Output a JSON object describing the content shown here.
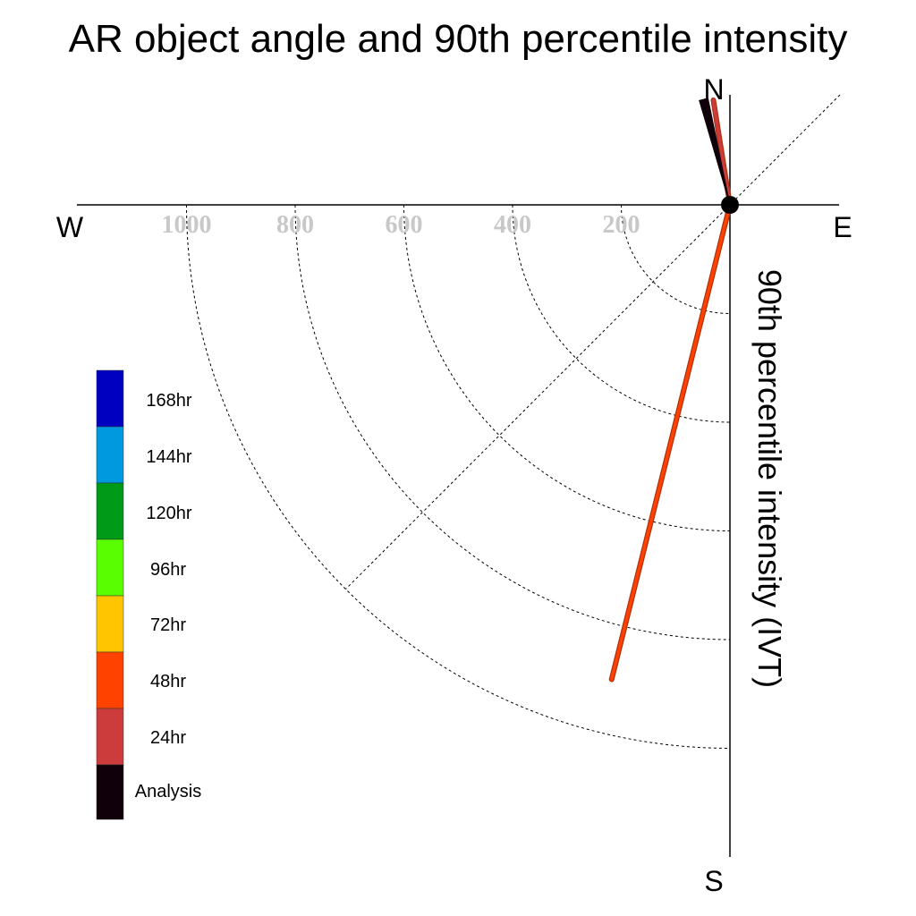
{
  "chart_data": {
    "type": "polar",
    "title": "AR object angle and 90th percentile intensity",
    "ylabel": "90th percentile intensity (IVT)",
    "compass": {
      "north": "N",
      "south": "S",
      "east": "E",
      "west": "W"
    },
    "radial_ticks": [
      200,
      400,
      600,
      800,
      1000
    ],
    "radial_tick_labels": [
      "200",
      "400",
      "600",
      "800",
      "1000"
    ],
    "rings": [
      200,
      400,
      600,
      800,
      1000
    ],
    "r_axis_max": 1200,
    "legend": [
      {
        "label": "168hr",
        "color": "#0000c0"
      },
      {
        "label": "144hr",
        "color": "#0099e0"
      },
      {
        "label": "120hr",
        "color": "#009a19"
      },
      {
        "label": "96hr",
        "color": "#59ff00"
      },
      {
        "label": "72hr",
        "color": "#ffc600"
      },
      {
        "label": "48hr",
        "color": "#ff4200"
      },
      {
        "label": "24hr",
        "color": "#cd3c3c"
      },
      {
        "label": "Analysis",
        "color": "#0f0009"
      }
    ],
    "series": [
      {
        "name": "48hr",
        "color": "#ff4200",
        "angle_deg": 194,
        "intensity": 900
      },
      {
        "name": "24hr",
        "color": "#cd3c3c",
        "angle_deg": 351,
        "intensity": 195
      },
      {
        "name": "Analysis",
        "color": "#0f0009",
        "angle_deg": 346,
        "intensity": 200
      }
    ]
  }
}
